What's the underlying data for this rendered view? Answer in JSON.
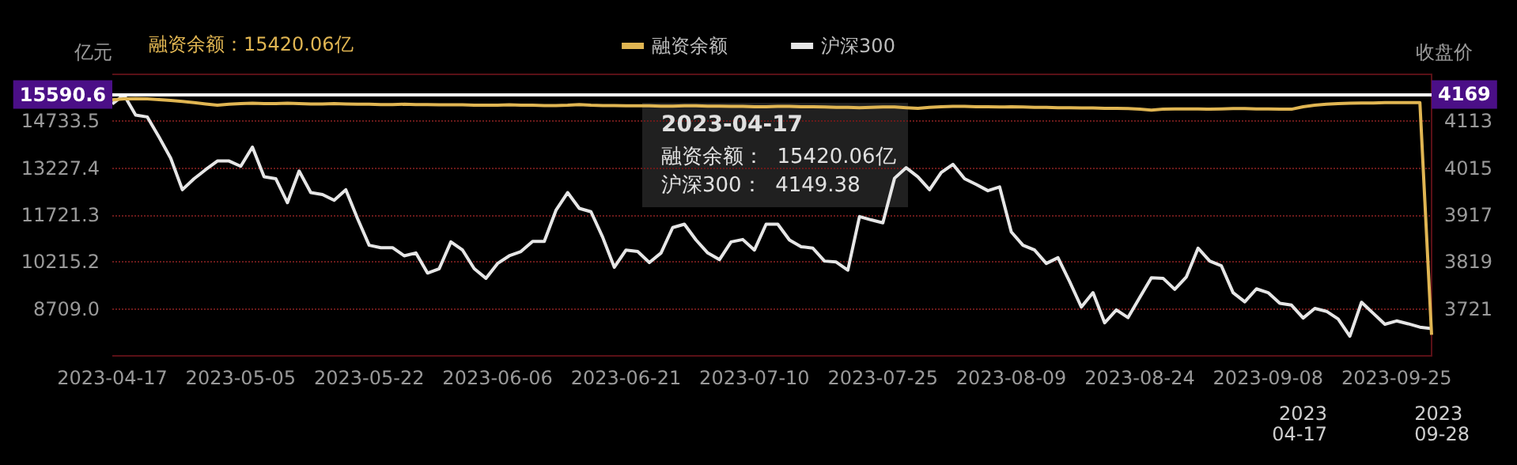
{
  "chart_data": {
    "type": "line",
    "categories": [
      "2023-04-17",
      null,
      null,
      null,
      null,
      null,
      null,
      null,
      null,
      null,
      null,
      "2023-05-05",
      null,
      null,
      null,
      null,
      null,
      null,
      null,
      null,
      null,
      null,
      "2023-05-22",
      null,
      null,
      null,
      null,
      null,
      null,
      null,
      null,
      null,
      null,
      "2023-06-06",
      null,
      null,
      null,
      null,
      null,
      null,
      null,
      null,
      null,
      null,
      "2023-06-21",
      null,
      null,
      null,
      null,
      null,
      null,
      null,
      null,
      null,
      null,
      "2023-07-10",
      null,
      null,
      null,
      null,
      null,
      null,
      null,
      null,
      null,
      null,
      "2023-07-25",
      null,
      null,
      null,
      null,
      null,
      null,
      null,
      null,
      null,
      null,
      "2023-08-09",
      null,
      null,
      null,
      null,
      null,
      null,
      null,
      null,
      null,
      null,
      "2023-08-24",
      null,
      null,
      null,
      null,
      null,
      null,
      null,
      null,
      null,
      null,
      "2023-09-08",
      null,
      null,
      null,
      null,
      null,
      null,
      null,
      null,
      null,
      null,
      "2023-09-25",
      null,
      null,
      null
    ],
    "series": [
      {
        "name": "融资余额",
        "color": "#e0b552",
        "values": [
          15420.06,
          15450,
          15460,
          15450,
          15430,
          15400,
          15370,
          15330,
          15290,
          15250,
          15280,
          15300,
          15310,
          15300,
          15300,
          15310,
          15300,
          15290,
          15290,
          15300,
          15290,
          15280,
          15280,
          15270,
          15270,
          15280,
          15270,
          15270,
          15260,
          15260,
          15260,
          15250,
          15250,
          15250,
          15260,
          15250,
          15250,
          15240,
          15240,
          15250,
          15270,
          15250,
          15240,
          15240,
          15230,
          15230,
          15230,
          15220,
          15220,
          15230,
          15230,
          15220,
          15220,
          15210,
          15210,
          15200,
          15200,
          15210,
          15210,
          15200,
          15200,
          15190,
          15180,
          15180,
          15170,
          15180,
          15190,
          15190,
          15170,
          15150,
          15180,
          15200,
          15210,
          15210,
          15200,
          15200,
          15190,
          15200,
          15190,
          15180,
          15180,
          15170,
          15170,
          15160,
          15160,
          15150,
          15150,
          15140,
          15120,
          15090,
          15120,
          15130,
          15130,
          15130,
          15120,
          15130,
          15140,
          15140,
          15130,
          15130,
          15120,
          15120,
          15200,
          15250,
          15280,
          15300,
          15310,
          15320,
          15320,
          15330,
          15330,
          15330,
          15330,
          7880
        ]
      },
      {
        "name": "沪深300",
        "color": "#e6e6e6",
        "axis": "y2",
        "values": [
          4149.38,
          4168,
          4126,
          4122,
          4080,
          4036,
          3970,
          3993,
          4012,
          4030,
          4030,
          4019,
          4059,
          3997,
          3993,
          3943,
          4009,
          3964,
          3960,
          3948,
          3970,
          3910,
          3854,
          3849,
          3849,
          3832,
          3838,
          3796,
          3805,
          3861,
          3844,
          3805,
          3785,
          3816,
          3832,
          3841,
          3862,
          3862,
          3927,
          3964,
          3931,
          3924,
          3871,
          3808,
          3844,
          3841,
          3818,
          3838,
          3891,
          3898,
          3865,
          3838,
          3824,
          3861,
          3866,
          3844,
          3898,
          3898,
          3865,
          3851,
          3848,
          3821,
          3819,
          3802,
          3914,
          3907,
          3901,
          3994,
          4016,
          3997,
          3970,
          4006,
          4023,
          3993,
          3981,
          3968,
          3976,
          3882,
          3854,
          3844,
          3816,
          3828,
          3778,
          3725,
          3755,
          3692,
          3719,
          3703,
          3745,
          3786,
          3785,
          3762,
          3788,
          3848,
          3821,
          3811,
          3755,
          3736,
          3763,
          3755,
          3733,
          3729,
          3702,
          3722,
          3716,
          3700,
          3664,
          3735,
          3712,
          3689,
          3696,
          3690,
          3683,
          3680
        ]
      }
    ],
    "ylim": [
      7202.9,
      16239.6
    ],
    "yticks": [
      {
        "value": 8709,
        "label": "8709.0"
      },
      10215.2,
      11721.3,
      13227.4,
      14733.5
    ],
    "y2lim": [
      3623,
      4211
    ],
    "y2ticks": [
      3721,
      3819,
      3917,
      4015,
      4113
    ],
    "ylabel": "亿元",
    "y2label": "收盘价",
    "ref_lines": [
      {
        "axis": "y",
        "value": 15590.6,
        "label": "15590.6",
        "color": "#ffffff"
      },
      {
        "axis": "y2",
        "value": 4169,
        "label": "4169",
        "color": "#ffffff"
      }
    ],
    "annotations": [
      "融资余额：15420.06亿",
      "2023-04-17",
      "融资余额：  15420.06亿",
      "沪深300：  4149.38",
      "2023\n04-17",
      "2023\n09-28"
    ],
    "grid": "y",
    "legend": "top",
    "marker": "none",
    "line_style": "solid"
  }
}
